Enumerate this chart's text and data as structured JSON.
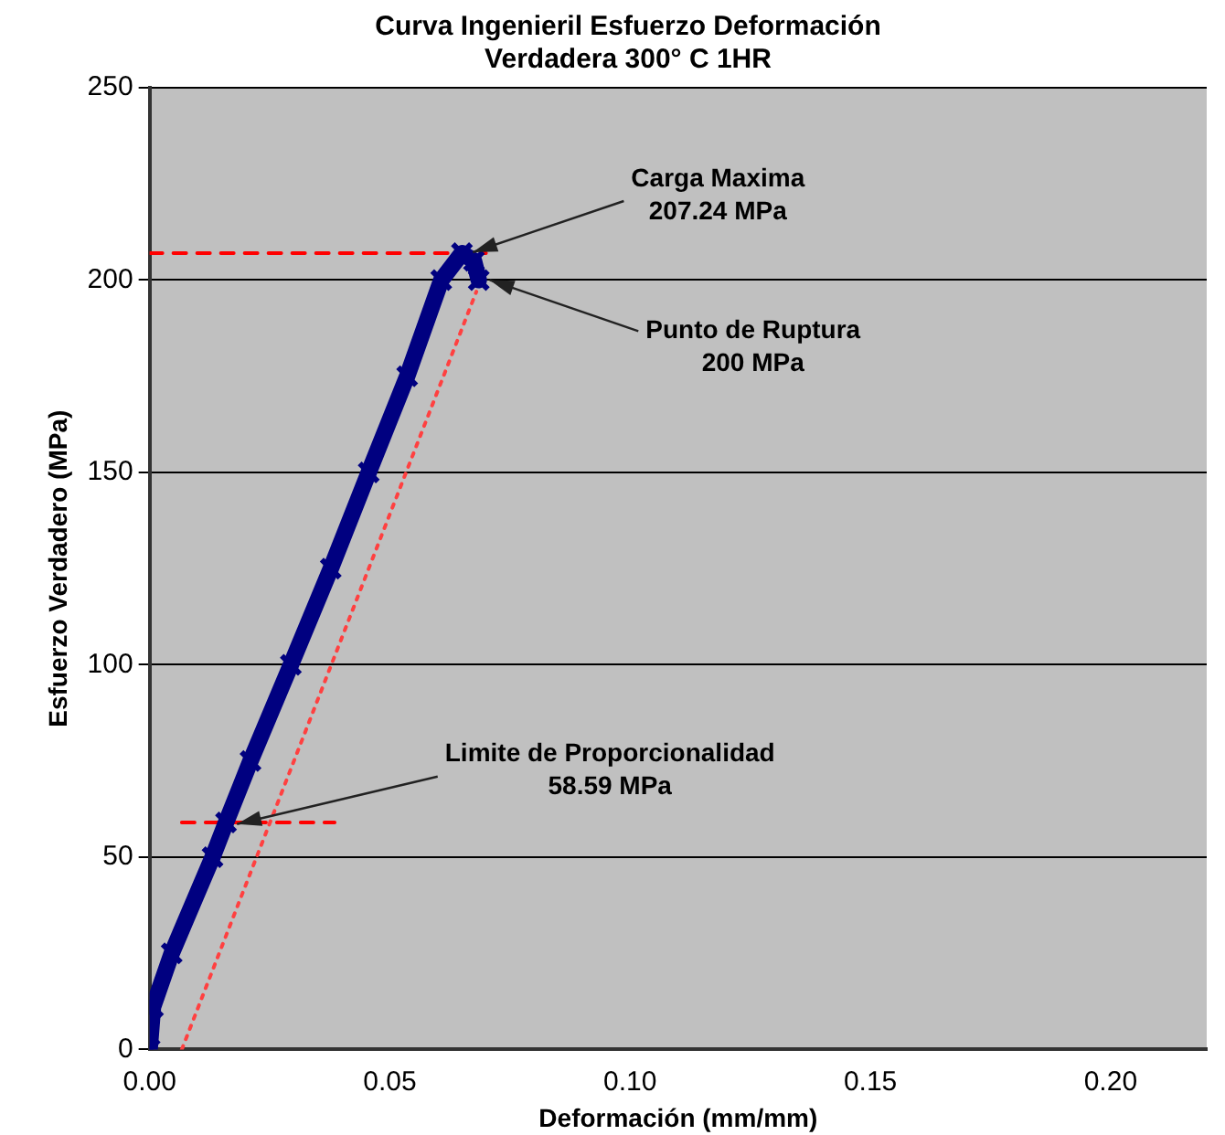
{
  "chart_data": {
    "type": "line",
    "title": "Curva Ingenieril Esfuerzo Deformación\nVerdadera 300° C 1HR",
    "xlabel": "Deformación (mm/mm)",
    "ylabel": "Esfuerzo Verdadero (MPa)",
    "series": [
      {
        "color": "#000080",
        "marker": "cross",
        "x": [
          0,
          0.0007,
          0.0046,
          0.0131,
          0.0159,
          0.021,
          0.0294,
          0.0377,
          0.0456,
          0.0536,
          0.0607,
          0.065,
          0.0675,
          0.0685
        ],
        "values": [
          0,
          11,
          25,
          50,
          59,
          75,
          100,
          125,
          150,
          175,
          200,
          207,
          205,
          200
        ]
      },
      {
        "color": "#ff4040",
        "marker": "none",
        "line_style": "dotted",
        "x": [
          0.0067,
          0.068
        ],
        "values": [
          0,
          197
        ]
      },
      {
        "color": "#ff0000",
        "marker": "none",
        "line_style": "dashed",
        "x": [
          0,
          0.07
        ],
        "values": [
          207,
          207
        ]
      },
      {
        "color": "#ff0000",
        "marker": "none",
        "line_style": "dashed",
        "x": [
          0.0067,
          0.0385
        ],
        "values": [
          59,
          59
        ]
      }
    ],
    "xlim": [
      0,
      0.22
    ],
    "xticks": [
      {
        "value": 0,
        "label": "0.00"
      },
      {
        "value": 0.05,
        "label": "0.05"
      },
      {
        "value": 0.1,
        "label": "0.10"
      },
      {
        "value": 0.15,
        "label": "0.15"
      },
      {
        "value": 0.2,
        "label": "0.20"
      }
    ],
    "ylim": [
      0,
      250
    ],
    "yticks": [
      0,
      50,
      100,
      150,
      200,
      250
    ],
    "grid": "y",
    "legend": false,
    "annotations": [
      {
        "text": "Carga Maxima\n207.24 MPa",
        "x": 0.065,
        "y": 207.24
      },
      {
        "text": "Punto de Ruptura\n200 MPa",
        "x": 0.0685,
        "y": 200
      },
      {
        "text": "Limite de Proporcionalidad\n58.59 MPa",
        "x": 0.0159,
        "y": 58.59
      }
    ]
  }
}
